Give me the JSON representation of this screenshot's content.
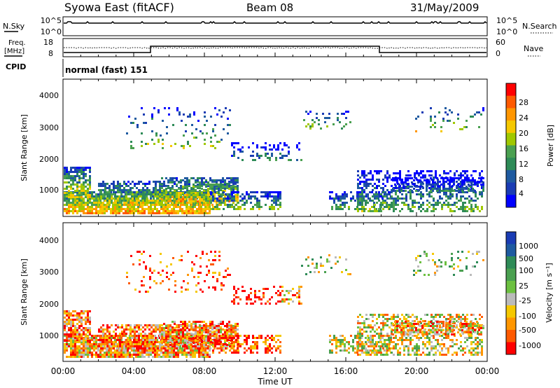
{
  "header": {
    "station": "Syowa East (fitACF)",
    "beam": "Beam 08",
    "date": "31/May/2009"
  },
  "top_panels": {
    "nsky_label": "N.Sky",
    "nsky_ticks": [
      "10^5",
      "10^0"
    ],
    "nsearch_label": "N.Search",
    "nsearch_ticks": [
      "10^5",
      "10^0"
    ],
    "freq_label": "Freq.",
    "freq_unit": "[MHz]",
    "freq_ticks": [
      "18",
      "8"
    ],
    "nave_label": "Nave",
    "nave_ticks": [
      "60",
      "0"
    ],
    "cpid_label": "CPID",
    "cpid_value": "normal (fast) 151"
  },
  "chart_data": [
    {
      "type": "heatmap",
      "name": "power",
      "ylabel": "Slant Range [km]",
      "ylim": [
        180,
        4500
      ],
      "yticks": [
        "4000",
        "3000",
        "2000",
        "1000"
      ],
      "colorbar_label": "Power [dB]",
      "colorbar_ticks": [
        "28",
        "24",
        "20",
        "16",
        "12",
        "8",
        "4"
      ],
      "colorbar_colors": [
        "#ff0000",
        "#ff5a00",
        "#ff9600",
        "#f5c800",
        "#a0c800",
        "#4aa050",
        "#2e8b57",
        "#1e5aa0",
        "#1a3cb4",
        "#0000ff"
      ]
    },
    {
      "type": "heatmap",
      "name": "velocity",
      "ylabel": "Slant Range [km]",
      "ylim": [
        180,
        4500
      ],
      "yticks": [
        "4000",
        "3000",
        "2000",
        "1000"
      ],
      "colorbar_label": "Velocity [m s⁻¹]",
      "colorbar_ticks": [
        "1000",
        "500",
        "100",
        "25",
        "-25",
        "-100",
        "-500",
        "-1000"
      ],
      "colorbar_colors": [
        "#1a3cb4",
        "#1e5aa0",
        "#2e8b57",
        "#4aa050",
        "#6cc040",
        "#bbbbbb",
        "#f5c800",
        "#ff9600",
        "#ff5a00",
        "#ff0000"
      ]
    }
  ],
  "x_axis": {
    "ticks": [
      "00:00",
      "04:00",
      "08:00",
      "12:00",
      "16:00",
      "20:00",
      "00:00"
    ],
    "label": "Time UT"
  }
}
